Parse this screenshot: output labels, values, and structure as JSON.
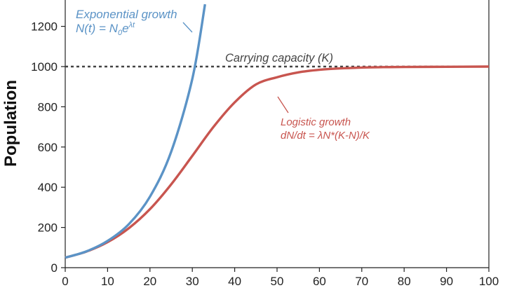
{
  "chart_data": {
    "type": "line",
    "title": "",
    "xlabel": "",
    "ylabel": "Population",
    "xlim": [
      0,
      100
    ],
    "ylim": [
      0,
      1300
    ],
    "x_ticks": [
      "0",
      "10",
      "20",
      "30",
      "40",
      "50",
      "60",
      "70",
      "80",
      "90",
      "100"
    ],
    "y_ticks": [
      "0",
      "200",
      "400",
      "600",
      "800",
      "1000",
      "1200"
    ],
    "grid": false,
    "series": [
      {
        "name": "Exponential growth",
        "color": "#5b93c6",
        "x": [
          0,
          5,
          10,
          15,
          20,
          25,
          30,
          33
        ],
        "y": [
          50,
          81,
          133,
          216,
          353,
          576,
          939,
          1310
        ]
      },
      {
        "name": "Logistic growth",
        "color": "#c8554f",
        "x": [
          0,
          5,
          10,
          15,
          20,
          25,
          30,
          35,
          40,
          45,
          50,
          55,
          60,
          65,
          70,
          75,
          80,
          90,
          100
        ],
        "y": [
          50,
          80,
          127,
          196,
          291,
          414,
          556,
          700,
          822,
          911,
          947,
          971,
          984,
          991,
          995,
          997,
          998,
          999,
          1000
        ]
      }
    ],
    "reference_line": {
      "label": "Carrying capacity (K)",
      "y": 1000,
      "color": "#444444"
    },
    "annotations": {
      "exponential_title": "Exponential growth",
      "exponential_formula": "N(t) = N",
      "exponential_sub": "0",
      "exponential_base": "e",
      "exponential_sup": "λt",
      "logistic_title": "Logistic growth",
      "logistic_formula": "dN/dt = λN*(K-N)/K"
    }
  }
}
